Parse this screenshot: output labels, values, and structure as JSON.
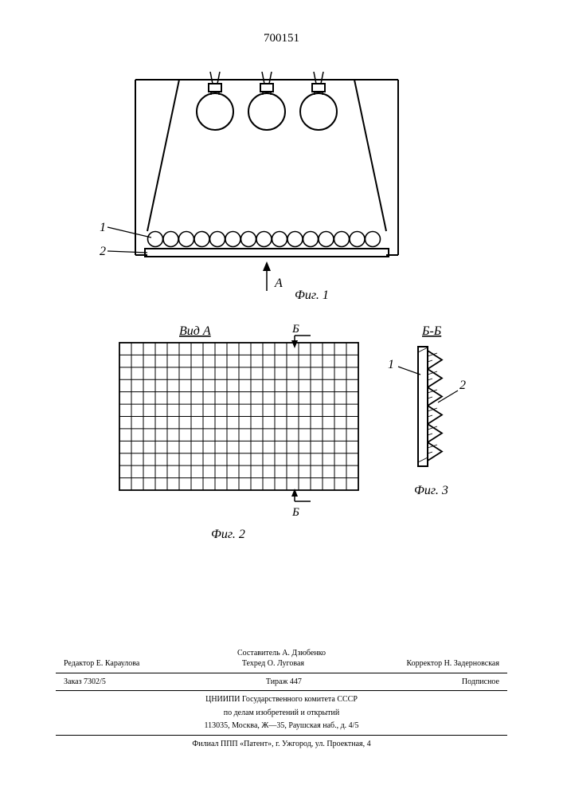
{
  "document_number": "700151",
  "figures": {
    "fig1": {
      "label": "Фиг. 1",
      "arrow_label": "А",
      "ref_1": "1",
      "ref_2": "2",
      "bulbs": 3,
      "diffuser_circles": 15,
      "stroke": "#000000",
      "fill": "#ffffff"
    },
    "fig2": {
      "title": "Вид А",
      "label": "Фиг. 2",
      "section_label": "Б",
      "cols": 20,
      "rows": 12,
      "stroke": "#000000"
    },
    "fig3": {
      "title": "Б-Б",
      "label": "Фиг. 3",
      "ref_1": "1",
      "ref_2": "2",
      "teeth": 6,
      "stroke": "#000000"
    }
  },
  "credits": {
    "compiler": "Составитель А. Дзюбенко",
    "editor": "Редактор Е. Караулова",
    "tech_editor": "Техред О. Луговая",
    "corrector": "Корректор Н. Задерновская",
    "order": "Заказ 7302/5",
    "circulation": "Тираж 447",
    "subscription": "Подписное",
    "org_line1": "ЦНИИПИ Государственного комитета СССР",
    "org_line2": "по делам изобретений и открытий",
    "org_line3": "113035, Москва, Ж—35, Раушская наб., д. 4/5",
    "branch": "Филиал ППП «Патент», г. Ужгород, ул. Проектная, 4"
  }
}
